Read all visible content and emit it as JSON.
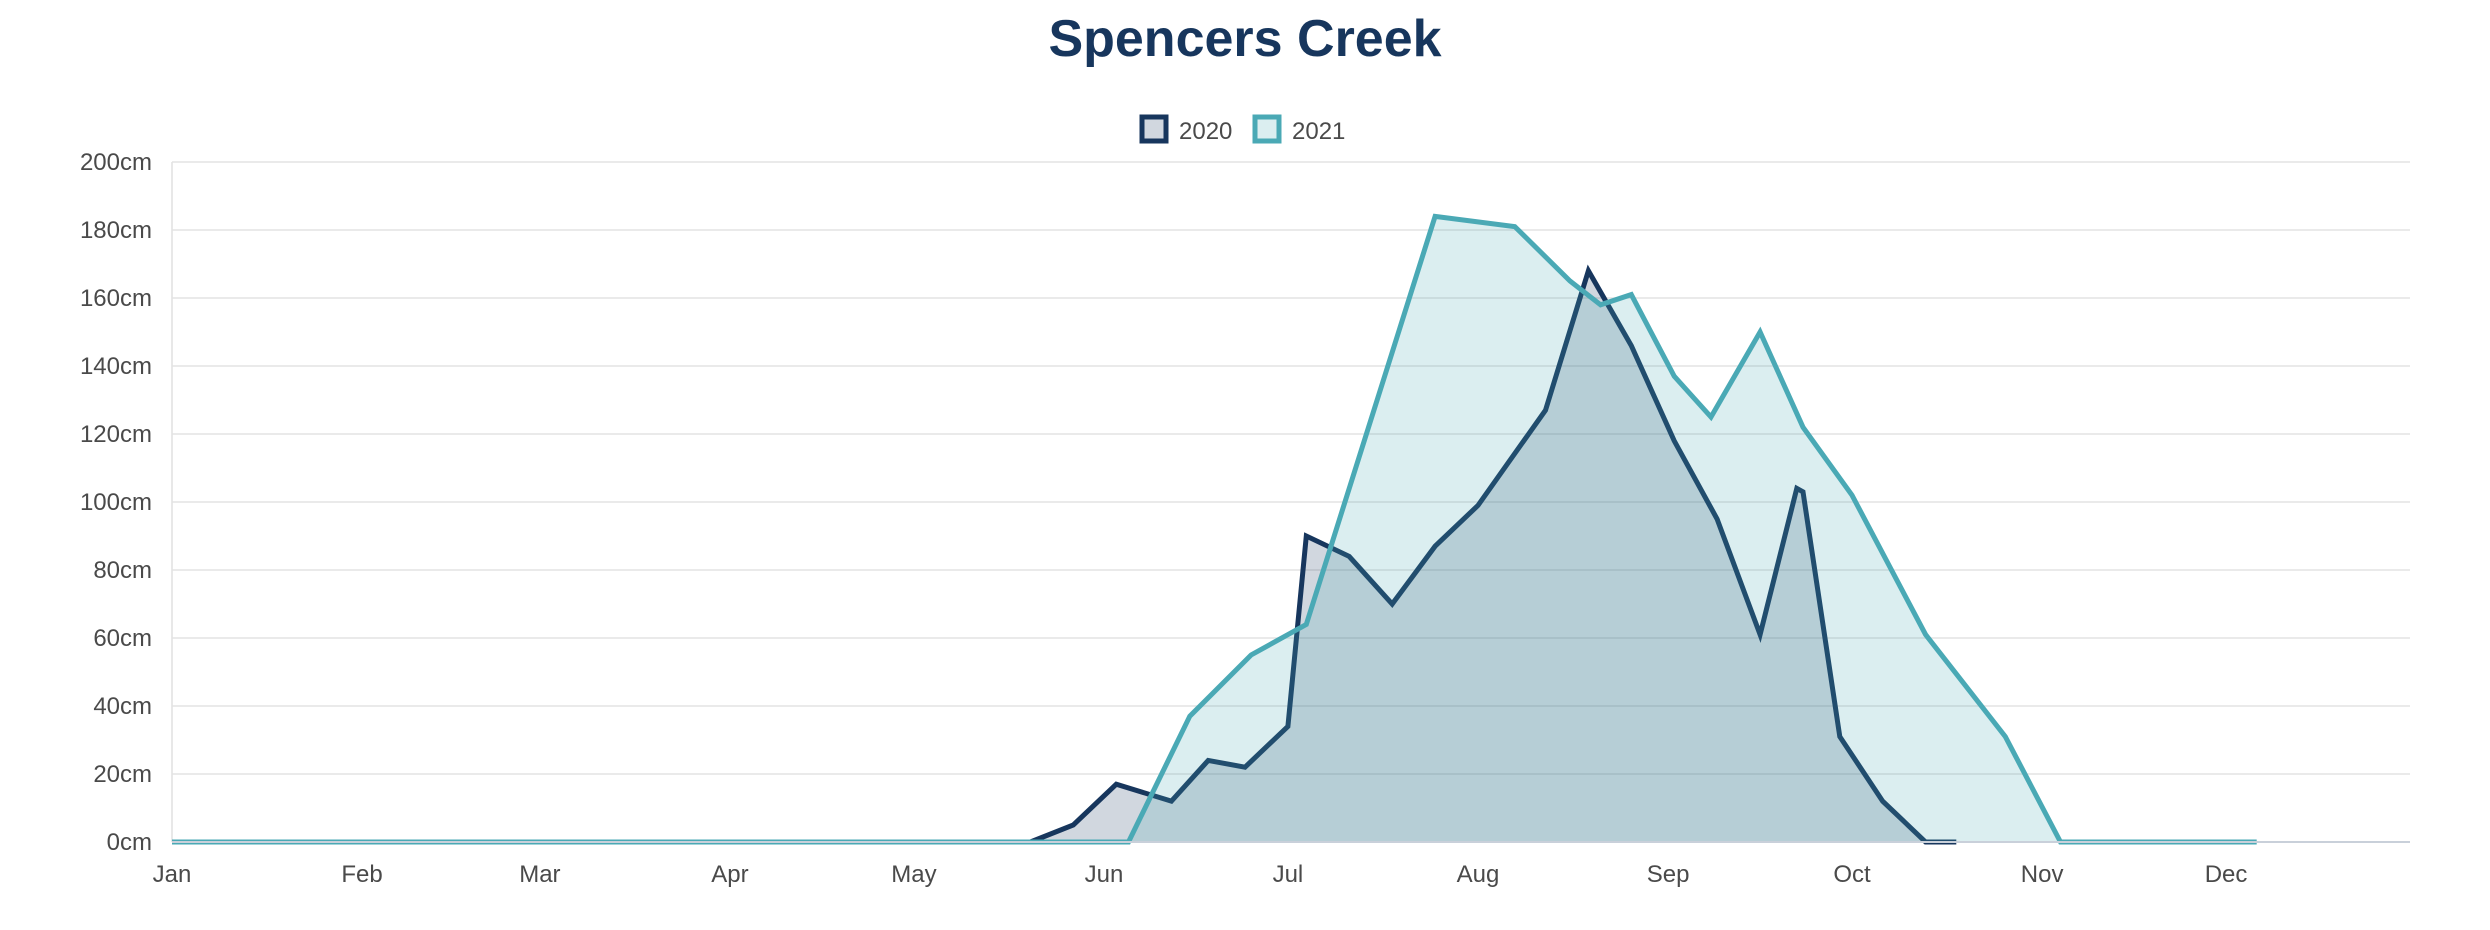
{
  "chart_data": {
    "type": "area",
    "title": "Spencers Creek",
    "xlabel": "",
    "ylabel": "",
    "x_unit": "day-of-year",
    "xlim": [
      1,
      366
    ],
    "ylim": [
      0,
      200
    ],
    "y_ticks": [
      0,
      20,
      40,
      60,
      80,
      100,
      120,
      140,
      160,
      180,
      200
    ],
    "y_tick_labels": [
      "0cm",
      "20cm",
      "40cm",
      "60cm",
      "80cm",
      "100cm",
      "120cm",
      "140cm",
      "160cm",
      "180cm",
      "200cm"
    ],
    "x_ticks": [
      1,
      32,
      61,
      92,
      122,
      153,
      183,
      214,
      245,
      275,
      306,
      336
    ],
    "x_tick_labels": [
      "Jan",
      "Feb",
      "Mar",
      "Apr",
      "May",
      "Jun",
      "Jul",
      "Aug",
      "Sep",
      "Oct",
      "Nov",
      "Dec"
    ],
    "grid": true,
    "legend_position": "top-center",
    "series": [
      {
        "name": "2020",
        "color": "#17365d",
        "fill": "rgba(23,54,93,0.2)",
        "x": [
          141,
          148,
          155,
          164,
          170,
          176,
          183,
          186,
          193,
          200,
          207,
          214,
          225,
          232,
          239,
          246,
          253,
          260,
          266,
          267,
          273,
          280,
          287,
          292
        ],
        "values": [
          0,
          5,
          17,
          12,
          24,
          22,
          34,
          90,
          84,
          70,
          87,
          99,
          127,
          168,
          146,
          118,
          95,
          61,
          104,
          103,
          31,
          12,
          0,
          0
        ]
      },
      {
        "name": "2021",
        "color": "#4aa9b5",
        "fill": "rgba(74,169,181,0.2)",
        "x": [
          1,
          157,
          167,
          177,
          186,
          207,
          220,
          229,
          234,
          239,
          246,
          252,
          260,
          267,
          275,
          287,
          300,
          309,
          341
        ],
        "values": [
          0,
          0,
          37,
          55,
          64,
          184,
          181,
          165,
          158,
          161,
          137,
          125,
          150,
          122,
          102,
          61,
          31,
          0,
          0
        ]
      }
    ]
  }
}
